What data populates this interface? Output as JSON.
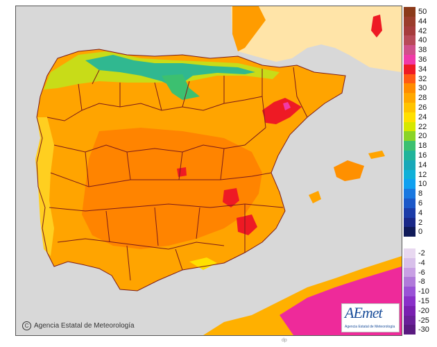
{
  "map": {
    "copyright": "Agencia Estatal de Meteorología",
    "footer_mark": "dp",
    "logo": {
      "brand": "AEmet",
      "subtitle": "Agencia Estatal de Meteorología"
    }
  },
  "legend": {
    "scale_top": [
      {
        "label": "50",
        "color": "#8b3a1a"
      },
      {
        "label": "44",
        "color": "#9b3d2c"
      },
      {
        "label": "42",
        "color": "#a63c3c"
      },
      {
        "label": "40",
        "color": "#b84a58"
      },
      {
        "label": "38",
        "color": "#d0508a"
      },
      {
        "label": "36",
        "color": "#f03aa8"
      },
      {
        "label": "34",
        "color": "#ee1a24"
      },
      {
        "label": "32",
        "color": "#ff5a14"
      },
      {
        "label": "30",
        "color": "#ff8c00"
      },
      {
        "label": "28",
        "color": "#ffa800"
      },
      {
        "label": "26",
        "color": "#ffc400"
      },
      {
        "label": "24",
        "color": "#ffe000"
      },
      {
        "label": "22",
        "color": "#d6e800"
      },
      {
        "label": "20",
        "color": "#8ad428"
      },
      {
        "label": "18",
        "color": "#3cc070"
      },
      {
        "label": "16",
        "color": "#20b49a"
      },
      {
        "label": "14",
        "color": "#18a8b8"
      },
      {
        "label": "12",
        "color": "#10b0d8"
      },
      {
        "label": "10",
        "color": "#10a0f0"
      },
      {
        "label": "8",
        "color": "#1a78e0"
      },
      {
        "label": "6",
        "color": "#1c58c8"
      },
      {
        "label": "4",
        "color": "#1c3ca8"
      },
      {
        "label": "2",
        "color": "#1a2888"
      },
      {
        "label": "0",
        "color": "#101a58"
      }
    ],
    "scale_bottom": [
      {
        "label": "-2",
        "color": "#e8d8f0"
      },
      {
        "label": "-4",
        "color": "#d8c0ea"
      },
      {
        "label": "-6",
        "color": "#c8a0e4"
      },
      {
        "label": "-8",
        "color": "#b07ada"
      },
      {
        "label": "-10",
        "color": "#9a52d6"
      },
      {
        "label": "-15",
        "color": "#8a30c8"
      },
      {
        "label": "-20",
        "color": "#7a20b0"
      },
      {
        "label": "-25",
        "color": "#6a2098"
      },
      {
        "label": "-30",
        "color": "#5a1a80"
      }
    ]
  },
  "colors": {
    "sea": "#d8d8d8",
    "foreign_land": "#f2dfbf",
    "land_hot": "#ff9000",
    "land_warm": "#ffac00",
    "land_mild": "#ffd000",
    "coast_green": "#9ad030",
    "mountain_teal": "#30b890",
    "peak_red": "#ee1a24",
    "africa_magenta": "#ee2a9a",
    "border": "#7a1a1a"
  }
}
